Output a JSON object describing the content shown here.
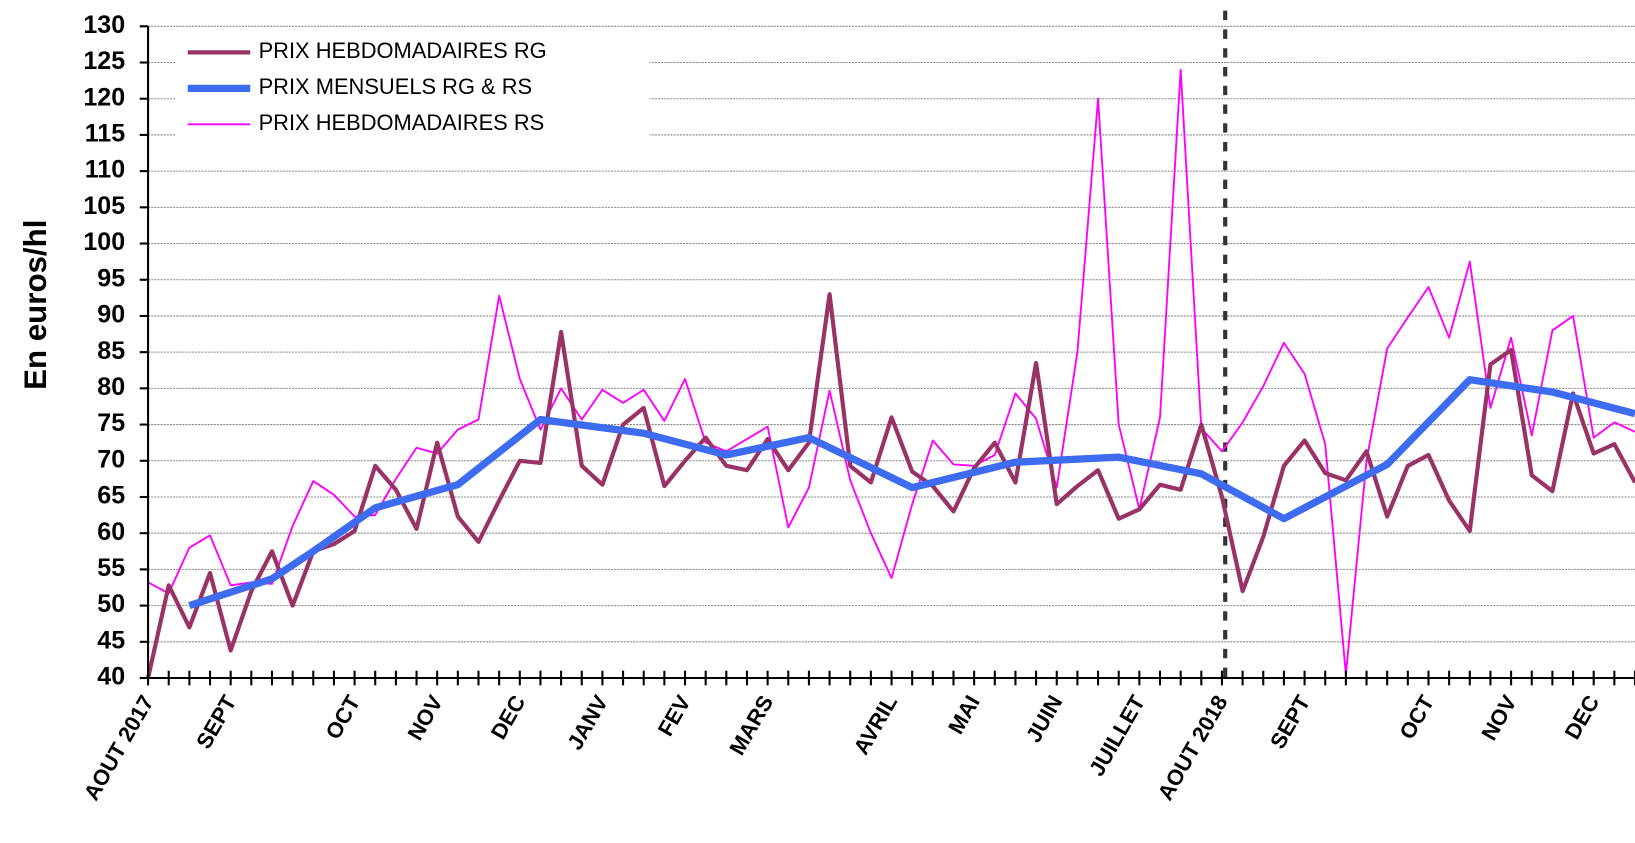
{
  "chart_data": {
    "type": "line",
    "ylabel": "En euros/hl",
    "ylim": [
      40,
      130
    ],
    "yticks": [
      40,
      45,
      50,
      55,
      60,
      65,
      70,
      75,
      80,
      85,
      90,
      95,
      100,
      105,
      110,
      115,
      120,
      125,
      130
    ],
    "grid": true,
    "legend": "upper left",
    "categories": [
      "AOUT 2017",
      null,
      null,
      null,
      "SEPT",
      null,
      null,
      null,
      null,
      null,
      "OCT",
      null,
      null,
      null,
      "NOV",
      null,
      null,
      null,
      "DEC",
      null,
      null,
      null,
      "JANV",
      null,
      null,
      null,
      "FEV",
      null,
      null,
      null,
      "MARS",
      null,
      null,
      null,
      null,
      null,
      "AVRIL",
      null,
      null,
      null,
      "MAI",
      null,
      null,
      null,
      "JUIN",
      null,
      null,
      null,
      "JUILLET",
      null,
      null,
      null,
      "AOUT 2018",
      null,
      null,
      null,
      "SEPT",
      null,
      null,
      null,
      null,
      null,
      "OCT",
      null,
      null,
      null,
      "NOV",
      null,
      null,
      null,
      "DEC",
      null,
      null
    ],
    "series": [
      {
        "name": "PRIX HEBDOMADAIRES RG",
        "color": "#993366",
        "width": 4,
        "values": [
          40,
          52.8,
          47,
          54.5,
          43.8,
          52,
          57.5,
          50,
          57.5,
          58.5,
          60.3,
          69.3,
          66,
          60.6,
          72.5,
          62.3,
          58.8,
          64.5,
          70,
          69.7,
          87.8,
          69.3,
          66.7,
          75,
          77.3,
          66.5,
          70,
          73.2,
          69.3,
          68.7,
          73,
          68.7,
          72.5,
          93,
          69.3,
          67,
          76,
          68.5,
          66.5,
          63,
          69,
          72.5,
          67,
          83.5,
          64,
          66.5,
          68.7,
          62,
          63.3,
          66.7,
          66,
          75,
          65,
          52,
          59.5,
          69.3,
          72.8,
          68.3,
          67.3,
          71.3,
          62.3,
          69.3,
          70.8,
          64.5,
          60.3,
          83.3,
          85.3,
          68,
          65.8,
          79.3,
          71,
          72.3,
          67
        ]
      },
      {
        "name": "PRIX MENSUELS RG & RS",
        "color": "#3d6cf0",
        "width": 7,
        "x": [
          2,
          6,
          8,
          11,
          15,
          19,
          24,
          28,
          32,
          37,
          42,
          47,
          51,
          55,
          60,
          64,
          68,
          72
        ],
        "values": [
          50,
          53.7,
          57.5,
          63.5,
          66.7,
          75.7,
          73.8,
          70.8,
          73.2,
          66.3,
          69.8,
          70.5,
          68.2,
          62,
          69.5,
          81.2,
          79.5,
          76.5
        ]
      },
      {
        "name": "PRIX HEBDOMADAIRES RS",
        "color": "#ff00ff",
        "width": 1.8,
        "values": [
          53.2,
          51.7,
          58,
          59.7,
          52.8,
          53.2,
          53,
          61,
          67.2,
          65.3,
          62.3,
          62.5,
          67.5,
          71.8,
          71,
          74.3,
          75.7,
          92.8,
          81.3,
          74.3,
          80,
          75.7,
          79.8,
          78,
          79.8,
          75.5,
          81.3,
          72.5,
          71.3,
          73,
          74.7,
          60.8,
          66.3,
          79.7,
          67.3,
          60,
          53.8,
          64,
          72.8,
          69.5,
          69.3,
          70.8,
          79.3,
          75.8,
          66.3,
          85,
          120,
          75,
          63.3,
          76,
          124,
          74.5,
          71.3,
          75.3,
          80.3,
          86.3,
          82,
          72.3,
          40.5,
          70,
          85.5,
          89.8,
          94,
          87,
          97.5,
          77.3,
          87,
          73.5,
          88,
          90,
          73.2,
          75.3,
          74
        ]
      }
    ]
  }
}
